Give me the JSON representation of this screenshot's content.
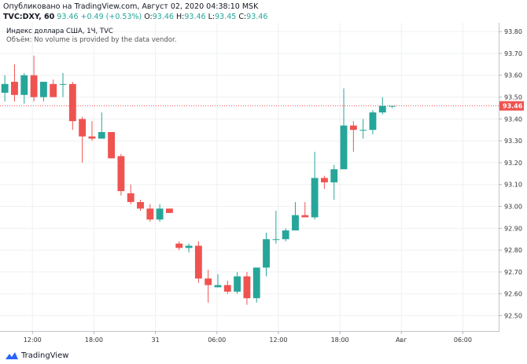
{
  "header": {
    "published": "Опубликовано на TradingView.com, Август 02, 2020 04:38:10 MSK",
    "symbol": "TVC:DXY, 60",
    "last": "93.46",
    "change": "+0.49 (+0.53%)",
    "o_label": "O:",
    "o_val": "93.46",
    "h_label": "H:",
    "h_val": "93.46",
    "l_label": "L:",
    "l_val": "93.45",
    "c_label": "C:",
    "c_val": "93.46"
  },
  "legend": {
    "title": "Индекс доллара США, 1Ч, TVC",
    "volume_note": "Объём: No volume is provided by the data vendor."
  },
  "footer": {
    "brand": "TradingView"
  },
  "colors": {
    "up": "#26a69a",
    "down": "#ef5350",
    "grid": "#eef0f3",
    "price_line": "#ef5350",
    "price_badge": "#ef5350"
  },
  "chart_data": {
    "type": "candlestick",
    "title": "Индекс доллара США, 1Ч, TVC",
    "xlabel": "",
    "ylabel": "",
    "ylim": [
      92.43,
      93.84
    ],
    "y_ticks": [
      92.5,
      92.6,
      92.7,
      92.8,
      92.9,
      93.0,
      93.1,
      93.2,
      93.3,
      93.4,
      93.5,
      93.6,
      93.7,
      93.8
    ],
    "y_tick_labels": [
      "92.50",
      "92.60",
      "92.70",
      "92.80",
      "92.90",
      "93.00",
      "93.10",
      "93.20",
      "93.30",
      "93.40",
      "93.50",
      "93.60",
      "93.70",
      "93.80"
    ],
    "x_range": [
      -0.5,
      51
    ],
    "x_ticks": [
      {
        "i": 2.85,
        "label": "12:00"
      },
      {
        "i": 9.2,
        "label": "18:00"
      },
      {
        "i": 15.55,
        "label": "31"
      },
      {
        "i": 21.9,
        "label": "06:00"
      },
      {
        "i": 28.25,
        "label": "12:00"
      },
      {
        "i": 34.6,
        "label": "18:00"
      },
      {
        "i": 40.95,
        "label": "Авг"
      },
      {
        "i": 47.3,
        "label": "06:00"
      }
    ],
    "last_price": 93.46,
    "last_price_label": "93.46",
    "candles": [
      {
        "o": 93.52,
        "h": 93.6,
        "l": 93.48,
        "c": 93.56
      },
      {
        "o": 93.57,
        "h": 93.65,
        "l": 93.48,
        "c": 93.51
      },
      {
        "o": 93.51,
        "h": 93.61,
        "l": 93.47,
        "c": 93.6
      },
      {
        "o": 93.6,
        "h": 93.69,
        "l": 93.48,
        "c": 93.5
      },
      {
        "o": 93.5,
        "h": 93.57,
        "l": 93.48,
        "c": 93.57
      },
      {
        "o": 93.56,
        "h": 93.58,
        "l": 93.5,
        "c": 93.5
      },
      {
        "o": 93.56,
        "h": 93.61,
        "l": 93.5,
        "c": 93.56
      },
      {
        "o": 93.56,
        "h": 93.57,
        "l": 93.35,
        "c": 93.39
      },
      {
        "o": 93.4,
        "h": 93.41,
        "l": 93.2,
        "c": 93.32
      },
      {
        "o": 93.32,
        "h": 93.39,
        "l": 93.3,
        "c": 93.31
      },
      {
        "o": 93.31,
        "h": 93.43,
        "l": 93.31,
        "c": 93.34
      },
      {
        "o": 93.34,
        "h": 93.34,
        "l": 93.22,
        "c": 93.22
      },
      {
        "o": 93.23,
        "h": 93.24,
        "l": 93.05,
        "c": 93.07
      },
      {
        "o": 93.06,
        "h": 93.1,
        "l": 93.01,
        "c": 93.02
      },
      {
        "o": 93.02,
        "h": 93.03,
        "l": 92.98,
        "c": 92.99
      },
      {
        "o": 92.99,
        "h": 93.01,
        "l": 92.93,
        "c": 92.94
      },
      {
        "o": 92.94,
        "h": 93.01,
        "l": 92.93,
        "c": 92.99
      },
      {
        "o": 92.99,
        "h": 92.99,
        "l": 92.97,
        "c": 92.97
      },
      {
        "o": 92.83,
        "h": 92.84,
        "l": 92.8,
        "c": 92.81
      },
      {
        "o": 92.81,
        "h": 92.83,
        "l": 92.79,
        "c": 92.82
      },
      {
        "o": 92.82,
        "h": 92.84,
        "l": 92.65,
        "c": 92.67
      },
      {
        "o": 92.67,
        "h": 92.71,
        "l": 92.56,
        "c": 92.64
      },
      {
        "o": 92.63,
        "h": 92.69,
        "l": 92.63,
        "c": 92.64
      },
      {
        "o": 92.64,
        "h": 92.66,
        "l": 92.6,
        "c": 92.61
      },
      {
        "o": 92.61,
        "h": 92.7,
        "l": 92.6,
        "c": 92.68
      },
      {
        "o": 92.68,
        "h": 92.7,
        "l": 92.55,
        "c": 92.58
      },
      {
        "o": 92.58,
        "h": 92.72,
        "l": 92.56,
        "c": 92.72
      },
      {
        "o": 92.72,
        "h": 92.88,
        "l": 92.68,
        "c": 92.85
      },
      {
        "o": 92.85,
        "h": 92.98,
        "l": 92.83,
        "c": 92.85
      },
      {
        "o": 92.85,
        "h": 92.9,
        "l": 92.84,
        "c": 92.89
      },
      {
        "o": 92.89,
        "h": 93.02,
        "l": 92.89,
        "c": 92.96
      },
      {
        "o": 92.96,
        "h": 93.02,
        "l": 92.95,
        "c": 92.95
      },
      {
        "o": 92.95,
        "h": 93.25,
        "l": 92.94,
        "c": 93.13
      },
      {
        "o": 93.13,
        "h": 93.14,
        "l": 93.08,
        "c": 93.11
      },
      {
        "o": 93.11,
        "h": 93.19,
        "l": 93.03,
        "c": 93.17
      },
      {
        "o": 93.17,
        "h": 93.54,
        "l": 93.17,
        "c": 93.37
      },
      {
        "o": 93.37,
        "h": 93.39,
        "l": 93.25,
        "c": 93.35
      },
      {
        "o": 93.35,
        "h": 93.4,
        "l": 93.31,
        "c": 93.35
      },
      {
        "o": 93.35,
        "h": 93.44,
        "l": 93.33,
        "c": 93.43
      },
      {
        "o": 93.43,
        "h": 93.5,
        "l": 93.42,
        "c": 93.46
      },
      {
        "o": 93.46,
        "h": 93.46,
        "l": 93.45,
        "c": 93.46
      }
    ]
  }
}
